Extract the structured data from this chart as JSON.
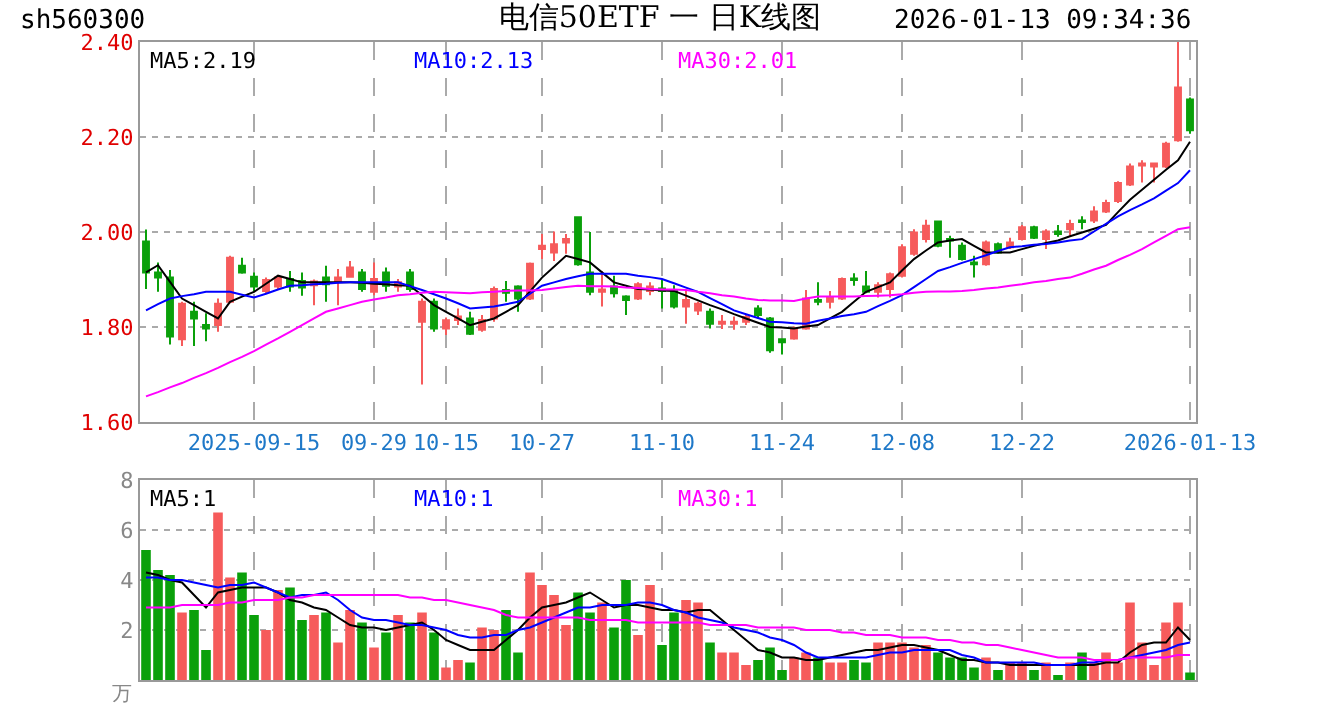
{
  "chart_data": [
    {
      "type": "candlestick",
      "title": "电信50ETF 一 日K线图",
      "annotations": [
        "sh560300",
        "2026-01-13 09:34:36"
      ],
      "categories": [
        null,
        null,
        null,
        null,
        null,
        null,
        null,
        null,
        null,
        "2025-09-15",
        null,
        null,
        null,
        null,
        null,
        null,
        null,
        null,
        null,
        "09-29",
        null,
        null,
        null,
        null,
        null,
        "10-15",
        null,
        null,
        null,
        null,
        null,
        null,
        null,
        "10-27",
        null,
        null,
        null,
        null,
        null,
        null,
        null,
        null,
        null,
        "11-10",
        null,
        null,
        null,
        null,
        null,
        null,
        null,
        null,
        null,
        "11-24",
        null,
        null,
        null,
        null,
        null,
        null,
        null,
        null,
        null,
        "12-08",
        null,
        null,
        null,
        null,
        null,
        null,
        null,
        null,
        null,
        "12-22",
        null,
        null,
        null,
        null,
        null,
        null,
        null,
        null,
        null,
        null,
        null,
        null,
        null,
        "2026-01-13"
      ],
      "ohlc": [
        [
          1.98,
          2.005,
          1.88,
          1.915
        ],
        [
          1.915,
          1.936,
          1.874,
          1.904
        ],
        [
          1.904,
          1.92,
          1.763,
          1.78
        ],
        [
          1.774,
          1.853,
          1.76,
          1.849
        ],
        [
          1.832,
          1.853,
          1.76,
          1.818
        ],
        [
          1.804,
          1.829,
          1.77,
          1.797
        ],
        [
          1.804,
          1.86,
          1.79,
          1.849
        ],
        [
          1.853,
          1.95,
          1.85,
          1.946
        ],
        [
          1.929,
          1.946,
          1.912,
          1.915
        ],
        [
          1.906,
          1.915,
          1.874,
          1.885
        ],
        [
          1.876,
          1.904,
          1.871,
          1.899
        ],
        [
          1.885,
          1.908,
          1.878,
          1.904
        ],
        [
          1.901,
          1.918,
          1.874,
          1.885
        ],
        [
          1.897,
          1.915,
          1.866,
          1.883
        ],
        [
          1.888,
          1.9,
          1.846,
          1.896
        ],
        [
          1.904,
          1.929,
          1.853,
          1.89
        ],
        [
          1.897,
          1.922,
          1.846,
          1.904
        ],
        [
          1.906,
          1.939,
          1.904,
          1.925
        ],
        [
          1.915,
          1.922,
          1.874,
          1.88
        ],
        [
          1.874,
          1.936,
          1.867,
          1.901
        ],
        [
          1.915,
          1.925,
          1.874,
          1.887
        ],
        [
          1.885,
          1.901,
          1.874,
          1.894
        ],
        [
          1.915,
          1.922,
          1.874,
          1.88
        ],
        [
          1.811,
          1.86,
          1.679,
          1.853
        ],
        [
          1.853,
          1.86,
          1.79,
          1.797
        ],
        [
          1.797,
          1.82,
          1.783,
          1.814
        ],
        [
          1.815,
          1.839,
          1.804,
          1.822
        ],
        [
          1.818,
          1.832,
          1.783,
          1.786
        ],
        [
          1.794,
          1.825,
          1.79,
          1.815
        ],
        [
          1.818,
          1.885,
          1.811,
          1.88
        ],
        [
          1.878,
          1.897,
          1.853,
          1.872
        ],
        [
          1.885,
          1.888,
          1.832,
          1.86
        ],
        [
          1.86,
          1.936,
          1.857,
          1.933
        ],
        [
          1.964,
          1.996,
          1.943,
          1.971
        ],
        [
          1.957,
          2.001,
          1.939,
          1.974
        ],
        [
          1.978,
          1.996,
          1.954,
          1.985
        ],
        [
          2.031,
          2.031,
          1.929,
          1.932
        ],
        [
          1.915,
          2.0,
          1.867,
          1.874
        ],
        [
          1.874,
          1.918,
          1.843,
          1.879
        ],
        [
          1.885,
          1.908,
          1.862,
          1.871
        ],
        [
          1.864,
          1.867,
          1.825,
          1.857
        ],
        [
          1.86,
          1.894,
          1.857,
          1.89
        ],
        [
          1.876,
          1.894,
          1.867,
          1.885
        ],
        [
          1.881,
          1.899,
          1.839,
          1.876
        ],
        [
          1.876,
          1.888,
          1.839,
          1.843
        ],
        [
          1.843,
          1.876,
          1.807,
          1.857
        ],
        [
          1.835,
          1.853,
          1.825,
          1.849
        ],
        [
          1.832,
          1.839,
          1.797,
          1.807
        ],
        [
          1.807,
          1.825,
          1.796,
          1.811
        ],
        [
          1.807,
          1.822,
          1.794,
          1.811
        ],
        [
          1.811,
          1.825,
          1.804,
          1.821
        ],
        [
          1.839,
          1.846,
          1.818,
          1.825
        ],
        [
          1.818,
          1.821,
          1.746,
          1.751
        ],
        [
          1.774,
          1.776,
          1.742,
          1.768
        ],
        [
          1.776,
          1.801,
          1.773,
          1.797
        ],
        [
          1.797,
          1.878,
          1.794,
          1.86
        ],
        [
          1.857,
          1.894,
          1.846,
          1.853
        ],
        [
          1.853,
          1.876,
          1.839,
          1.862
        ],
        [
          1.86,
          1.904,
          1.857,
          1.901
        ],
        [
          1.902,
          1.913,
          1.887,
          1.899
        ],
        [
          1.885,
          1.918,
          1.871,
          1.874
        ],
        [
          1.874,
          1.894,
          1.862,
          1.888
        ],
        [
          1.88,
          1.915,
          1.862,
          1.911
        ],
        [
          1.908,
          1.974,
          1.904,
          1.968
        ],
        [
          1.954,
          2.006,
          1.95,
          1.999
        ],
        [
          1.985,
          2.026,
          1.978,
          2.013
        ],
        [
          2.022,
          2.022,
          1.968,
          1.971
        ],
        [
          1.985,
          1.992,
          1.946,
          1.982
        ],
        [
          1.971,
          1.978,
          1.94,
          1.943
        ],
        [
          1.936,
          1.95,
          1.904,
          1.932
        ],
        [
          1.932,
          1.982,
          1.929,
          1.978
        ],
        [
          1.974,
          1.978,
          1.954,
          1.957
        ],
        [
          1.968,
          1.988,
          1.964,
          1.978
        ],
        [
          1.985,
          2.015,
          1.982,
          2.01
        ],
        [
          2.01,
          2.013,
          1.985,
          1.988
        ],
        [
          1.985,
          2.006,
          1.964,
          2.001
        ],
        [
          2.001,
          2.015,
          1.99,
          1.996
        ],
        [
          2.006,
          2.026,
          1.992,
          2.017
        ],
        [
          2.024,
          2.033,
          2.006,
          2.021
        ],
        [
          2.024,
          2.054,
          2.019,
          2.043
        ],
        [
          2.043,
          2.068,
          2.04,
          2.061
        ],
        [
          2.065,
          2.107,
          2.061,
          2.103
        ],
        [
          2.1,
          2.144,
          2.097,
          2.138
        ],
        [
          2.14,
          2.151,
          2.104,
          2.144
        ],
        [
          2.138,
          2.144,
          2.104,
          2.144
        ],
        [
          2.138,
          2.19,
          2.135,
          2.186
        ],
        [
          2.193,
          2.4,
          2.19,
          2.304
        ],
        [
          2.279,
          2.283,
          2.207,
          2.214
        ]
      ],
      "colors": [
        "#0aa00a",
        "#0aa00a",
        "#0aa00a",
        "#f65b5b",
        "#0aa00a",
        "#0aa00a",
        "#f65b5b",
        "#f65b5b",
        "#0aa00a",
        "#0aa00a",
        "#f65b5b",
        "#f65b5b",
        "#0aa00a",
        "#0aa00a",
        "#f65b5b",
        "#0aa00a",
        "#f65b5b",
        "#f65b5b",
        "#0aa00a",
        "#f65b5b",
        "#0aa00a",
        "#f65b5b",
        "#0aa00a",
        "#f65b5b",
        "#0aa00a",
        "#f65b5b",
        "#f65b5b",
        "#0aa00a",
        "#f65b5b",
        "#f65b5b",
        "#0aa00a",
        "#0aa00a",
        "#f65b5b",
        "#f65b5b",
        "#f65b5b",
        "#f65b5b",
        "#0aa00a",
        "#0aa00a",
        "#f65b5b",
        "#0aa00a",
        "#0aa00a",
        "#f65b5b",
        "#f65b5b",
        "#0aa00a",
        "#0aa00a",
        "#f65b5b",
        "#f65b5b",
        "#0aa00a",
        "#f65b5b",
        "#f65b5b",
        "#f65b5b",
        "#0aa00a",
        "#0aa00a",
        "#0aa00a",
        "#f65b5b",
        "#f65b5b",
        "#0aa00a",
        "#f65b5b",
        "#f65b5b",
        "#0aa00a",
        "#0aa00a",
        "#f65b5b",
        "#f65b5b",
        "#f65b5b",
        "#f65b5b",
        "#f65b5b",
        "#0aa00a",
        "#0aa00a",
        "#0aa00a",
        "#0aa00a",
        "#f65b5b",
        "#0aa00a",
        "#f65b5b",
        "#f65b5b",
        "#0aa00a",
        "#f65b5b",
        "#0aa00a",
        "#f65b5b",
        "#0aa00a",
        "#f65b5b",
        "#f65b5b",
        "#f65b5b",
        "#f65b5b",
        "#f65b5b",
        "#f65b5b",
        "#f65b5b",
        "#f65b5b",
        "#0aa00a"
      ],
      "series": [
        {
          "name": "MA5:2.19",
          "type": "line",
          "color": "#000000",
          "values": [
            1.915,
            1.93,
            1.895,
            1.86,
            1.846,
            1.832,
            1.818,
            1.853,
            1.864,
            1.874,
            1.891,
            1.908,
            1.901,
            1.894,
            1.894,
            1.894,
            1.894,
            1.894,
            1.893,
            1.891,
            1.89,
            1.888,
            1.887,
            1.867,
            1.846,
            1.832,
            1.818,
            1.804,
            1.811,
            1.818,
            1.832,
            1.846,
            1.875,
            1.904,
            1.927,
            1.95,
            1.943,
            1.936,
            1.915,
            1.894,
            1.887,
            1.88,
            1.879,
            1.877,
            1.876,
            1.866,
            1.856,
            1.846,
            1.837,
            1.827,
            1.818,
            1.809,
            1.8,
            1.799,
            1.797,
            1.801,
            1.804,
            1.818,
            1.832,
            1.853,
            1.874,
            1.884,
            1.894,
            1.919,
            1.943,
            1.961,
            1.978,
            1.982,
            1.985,
            1.971,
            1.957,
            1.957,
            1.957,
            1.964,
            1.971,
            1.977,
            1.982,
            1.991,
            1.999,
            2.007,
            2.015,
            2.042,
            2.068,
            2.089,
            2.11,
            2.131,
            2.151,
            2.19
          ]
        },
        {
          "name": "MA10:2.13",
          "type": "line",
          "color": "#0000ff",
          "values": [
            1.835,
            1.848,
            1.86,
            1.865,
            1.869,
            1.874,
            1.874,
            1.874,
            1.868,
            1.862,
            1.87,
            1.879,
            1.887,
            1.888,
            1.89,
            1.891,
            1.893,
            1.894,
            1.894,
            1.894,
            1.894,
            1.894,
            1.886,
            1.878,
            1.869,
            1.86,
            1.85,
            1.839,
            1.841,
            1.843,
            1.848,
            1.853,
            1.87,
            1.887,
            1.894,
            1.901,
            1.907,
            1.912,
            1.912,
            1.912,
            1.912,
            1.908,
            1.905,
            1.901,
            1.892,
            1.883,
            1.874,
            1.861,
            1.848,
            1.835,
            1.827,
            1.819,
            1.811,
            1.81,
            1.808,
            1.807,
            1.813,
            1.818,
            1.823,
            1.827,
            1.832,
            1.844,
            1.855,
            1.867,
            1.884,
            1.901,
            1.918,
            1.926,
            1.935,
            1.943,
            1.951,
            1.96,
            1.968,
            1.97,
            1.973,
            1.975,
            1.978,
            1.982,
            1.985,
            2.001,
            2.017,
            2.033,
            2.046,
            2.058,
            2.071,
            2.087,
            2.103,
            2.13
          ]
        },
        {
          "name": "MA30:2.01",
          "type": "line",
          "color": "#ff00ff",
          "values": [
            1.654,
            1.663,
            1.673,
            1.682,
            1.693,
            1.703,
            1.714,
            1.726,
            1.737,
            1.749,
            1.763,
            1.776,
            1.79,
            1.804,
            1.818,
            1.832,
            1.839,
            1.846,
            1.853,
            1.858,
            1.862,
            1.867,
            1.869,
            1.872,
            1.874,
            1.873,
            1.872,
            1.871,
            1.873,
            1.874,
            1.876,
            1.877,
            1.877,
            1.878,
            1.881,
            1.884,
            1.887,
            1.886,
            1.886,
            1.885,
            1.883,
            1.882,
            1.88,
            1.879,
            1.879,
            1.878,
            1.874,
            1.871,
            1.867,
            1.864,
            1.86,
            1.857,
            1.856,
            1.856,
            1.855,
            1.86,
            1.864,
            1.864,
            1.864,
            1.864,
            1.865,
            1.866,
            1.867,
            1.869,
            1.872,
            1.874,
            1.875,
            1.875,
            1.876,
            1.878,
            1.881,
            1.883,
            1.887,
            1.89,
            1.894,
            1.897,
            1.901,
            1.904,
            1.912,
            1.921,
            1.929,
            1.941,
            1.952,
            1.964,
            1.978,
            1.992,
            2.006,
            2.01
          ]
        }
      ],
      "ylim": [
        1.6,
        2.4
      ],
      "yticks": [
        {
          "value": 1.6,
          "label": "1.60"
        },
        {
          "value": 1.8,
          "label": "1.80"
        },
        {
          "value": 2.0,
          "label": "2.00"
        },
        {
          "value": 2.2,
          "label": "2.20"
        },
        {
          "value": 2.4,
          "label": "2.40"
        }
      ],
      "grid": true
    },
    {
      "type": "bar",
      "ylabel": "万",
      "categories": [
        null,
        null,
        null,
        null,
        null,
        null,
        null,
        null,
        null,
        null,
        null,
        null,
        null,
        null,
        null,
        null,
        null,
        null,
        null,
        null,
        null,
        null,
        null,
        null,
        null,
        null,
        null,
        null,
        null,
        null,
        null,
        null,
        null,
        null,
        null,
        null,
        null,
        null,
        null,
        null,
        null,
        null,
        null,
        null,
        null,
        null,
        null,
        null,
        null,
        null,
        null,
        null,
        null,
        null,
        null,
        null,
        null,
        null,
        null,
        null,
        null,
        null,
        null,
        null,
        null,
        null,
        null,
        null,
        null,
        null,
        null,
        null,
        null,
        null,
        null,
        null,
        null,
        null,
        null,
        null,
        null,
        null,
        null,
        null,
        null,
        null,
        null,
        null
      ],
      "series": [
        {
          "type": "bar",
          "values": [
            5.2,
            4.4,
            4.2,
            2.7,
            2.8,
            1.2,
            6.7,
            4.1,
            4.3,
            2.6,
            2.0,
            3.6,
            3.7,
            2.4,
            2.6,
            2.7,
            1.5,
            2.8,
            2.3,
            1.3,
            1.9,
            2.6,
            2.3,
            2.7,
            1.9,
            0.5,
            0.8,
            0.7,
            2.1,
            2.0,
            2.8,
            1.1,
            4.3,
            3.8,
            3.4,
            2.2,
            3.5,
            2.7,
            3.1,
            2.1,
            4.0,
            1.8,
            3.8,
            1.4,
            2.7,
            3.2,
            3.1,
            1.5,
            1.1,
            1.1,
            0.6,
            0.8,
            1.3,
            0.4,
            0.9,
            1.1,
            0.9,
            0.7,
            0.7,
            0.8,
            0.7,
            1.5,
            1.5,
            1.5,
            1.3,
            1.4,
            1.1,
            0.9,
            0.9,
            0.5,
            0.9,
            0.4,
            0.7,
            0.7,
            0.4,
            0.7,
            0.2,
            0.7,
            1.1,
            0.7,
            1.1,
            0.7,
            3.1,
            1.5,
            0.6,
            2.3,
            3.1,
            0.3
          ],
          "colors": [
            "#0aa00a",
            "#0aa00a",
            "#0aa00a",
            "#f65b5b",
            "#0aa00a",
            "#0aa00a",
            "#f65b5b",
            "#f65b5b",
            "#0aa00a",
            "#0aa00a",
            "#f65b5b",
            "#f65b5b",
            "#0aa00a",
            "#0aa00a",
            "#f65b5b",
            "#0aa00a",
            "#f65b5b",
            "#f65b5b",
            "#0aa00a",
            "#f65b5b",
            "#0aa00a",
            "#f65b5b",
            "#0aa00a",
            "#f65b5b",
            "#0aa00a",
            "#f65b5b",
            "#f65b5b",
            "#0aa00a",
            "#f65b5b",
            "#f65b5b",
            "#0aa00a",
            "#0aa00a",
            "#f65b5b",
            "#f65b5b",
            "#f65b5b",
            "#f65b5b",
            "#0aa00a",
            "#0aa00a",
            "#f65b5b",
            "#0aa00a",
            "#0aa00a",
            "#f65b5b",
            "#f65b5b",
            "#0aa00a",
            "#0aa00a",
            "#f65b5b",
            "#f65b5b",
            "#0aa00a",
            "#f65b5b",
            "#f65b5b",
            "#f65b5b",
            "#0aa00a",
            "#0aa00a",
            "#0aa00a",
            "#f65b5b",
            "#f65b5b",
            "#0aa00a",
            "#f65b5b",
            "#f65b5b",
            "#0aa00a",
            "#0aa00a",
            "#f65b5b",
            "#f65b5b",
            "#f65b5b",
            "#f65b5b",
            "#f65b5b",
            "#0aa00a",
            "#0aa00a",
            "#0aa00a",
            "#0aa00a",
            "#f65b5b",
            "#0aa00a",
            "#f65b5b",
            "#f65b5b",
            "#0aa00a",
            "#f65b5b",
            "#0aa00a",
            "#f65b5b",
            "#0aa00a",
            "#f65b5b",
            "#f65b5b",
            "#f65b5b",
            "#f65b5b",
            "#f65b5b",
            "#f65b5b",
            "#f65b5b",
            "#f65b5b",
            "#0aa00a"
          ]
        },
        {
          "name": "MA5:1",
          "type": "line",
          "color": "#000000",
          "values": [
            4.3,
            4.2,
            4.0,
            3.9,
            3.4,
            2.9,
            3.5,
            3.6,
            3.7,
            3.7,
            3.7,
            3.5,
            3.2,
            3.1,
            2.9,
            2.8,
            2.5,
            2.2,
            2.1,
            2.1,
            2.0,
            2.1,
            2.2,
            2.3,
            2.0,
            1.6,
            1.4,
            1.2,
            1.2,
            1.2,
            1.6,
            2.0,
            2.5,
            2.9,
            3.0,
            3.1,
            3.3,
            3.5,
            3.2,
            2.9,
            3.0,
            3.0,
            2.9,
            2.8,
            2.8,
            2.7,
            2.8,
            2.8,
            2.4,
            2.0,
            1.6,
            1.2,
            1.1,
            0.9,
            0.9,
            0.8,
            0.8,
            0.9,
            1.0,
            1.1,
            1.2,
            1.2,
            1.3,
            1.4,
            1.4,
            1.3,
            1.2,
            1.0,
            0.8,
            0.8,
            0.7,
            0.7,
            0.6,
            0.6,
            0.6,
            0.6,
            0.6,
            0.6,
            0.6,
            0.6,
            0.7,
            0.7,
            1.1,
            1.4,
            1.5,
            1.5,
            2.1,
            1.6
          ]
        },
        {
          "name": "MA10:1",
          "type": "line",
          "color": "#0000ff",
          "values": [
            4.1,
            4.1,
            4.0,
            4.0,
            3.9,
            3.8,
            3.7,
            3.8,
            3.8,
            3.9,
            3.7,
            3.5,
            3.3,
            3.4,
            3.4,
            3.5,
            3.2,
            2.8,
            2.5,
            2.4,
            2.4,
            2.3,
            2.2,
            2.2,
            2.1,
            2.0,
            1.8,
            1.7,
            1.7,
            1.8,
            1.8,
            2.0,
            2.1,
            2.3,
            2.5,
            2.7,
            2.9,
            2.9,
            3.0,
            3.0,
            3.0,
            3.1,
            3.1,
            3.0,
            2.8,
            2.7,
            2.5,
            2.4,
            2.3,
            2.1,
            2.0,
            1.9,
            1.7,
            1.6,
            1.4,
            1.1,
            0.9,
            0.9,
            0.9,
            0.9,
            0.9,
            1.0,
            1.1,
            1.1,
            1.2,
            1.2,
            1.2,
            1.2,
            1.0,
            0.9,
            0.7,
            0.7,
            0.7,
            0.7,
            0.7,
            0.6,
            0.6,
            0.6,
            0.7,
            0.7,
            0.8,
            0.8,
            0.9,
            1.0,
            1.1,
            1.2,
            1.4,
            1.5
          ]
        },
        {
          "name": "MA30:1",
          "type": "line",
          "color": "#ff00ff",
          "values": [
            2.9,
            2.9,
            2.9,
            3.0,
            3.0,
            3.0,
            3.0,
            3.1,
            3.1,
            3.2,
            3.2,
            3.2,
            3.3,
            3.3,
            3.4,
            3.4,
            3.4,
            3.4,
            3.4,
            3.4,
            3.4,
            3.4,
            3.3,
            3.3,
            3.2,
            3.2,
            3.1,
            3.0,
            2.9,
            2.8,
            2.6,
            2.5,
            2.5,
            2.5,
            2.5,
            2.5,
            2.5,
            2.4,
            2.4,
            2.4,
            2.4,
            2.3,
            2.3,
            2.3,
            2.3,
            2.3,
            2.3,
            2.2,
            2.2,
            2.2,
            2.2,
            2.1,
            2.1,
            2.1,
            2.1,
            2.0,
            2.0,
            2.0,
            1.9,
            1.9,
            1.8,
            1.8,
            1.8,
            1.7,
            1.7,
            1.7,
            1.6,
            1.6,
            1.5,
            1.5,
            1.4,
            1.4,
            1.3,
            1.2,
            1.1,
            1.0,
            0.9,
            0.9,
            0.9,
            0.8,
            0.8,
            0.8,
            0.9,
            0.9,
            0.9,
            0.9,
            1.0,
            1.0
          ]
        }
      ],
      "ylim": [
        0,
        8
      ],
      "yticks": [
        2,
        4,
        6,
        8
      ],
      "tick_labels": "y",
      "grid": true
    }
  ]
}
